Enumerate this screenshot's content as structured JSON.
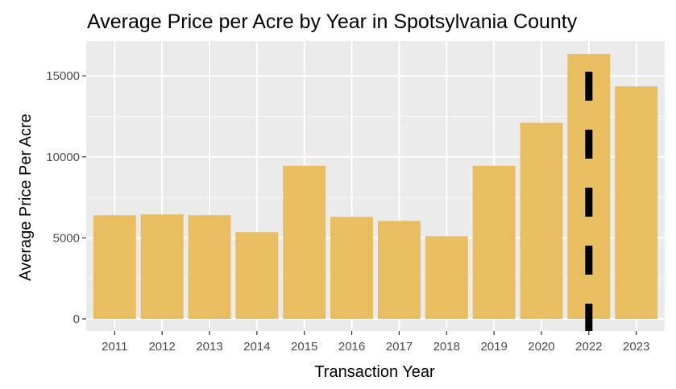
{
  "chart_data": {
    "type": "bar",
    "title": "Average Price per Acre by Year in Spotsylvania County",
    "xlabel": "Transaction Year",
    "ylabel": "Average Price Per Acre",
    "categories": [
      "2011",
      "2012",
      "2013",
      "2014",
      "2015",
      "2016",
      "2017",
      "2018",
      "2019",
      "2020",
      "2022",
      "2023"
    ],
    "values": [
      6400,
      6450,
      6400,
      5350,
      9450,
      6300,
      6050,
      5100,
      9450,
      12100,
      16350,
      14350
    ],
    "y_ticks": [
      0,
      5000,
      10000,
      15000
    ],
    "y_tick_labels": [
      "0",
      "5000",
      "10000",
      "15000"
    ],
    "ylim": [
      -750,
      17150
    ],
    "grid": true,
    "reference_line": {
      "category": "2022",
      "style": "dashed",
      "color": "#000000"
    },
    "colors": {
      "bar": "#E9BD62",
      "panel": "#EBEBEB",
      "grid_major": "#FFFFFF",
      "grid_minor": "#F5F5F5",
      "tick_text": "#4D4D4D",
      "tick_mark": "#333333"
    }
  }
}
